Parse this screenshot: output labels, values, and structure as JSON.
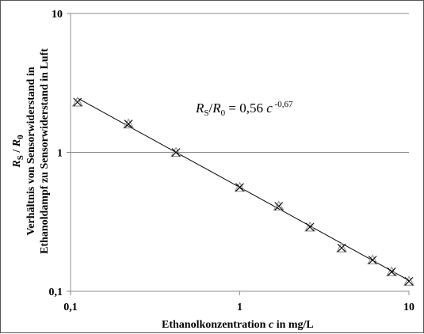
{
  "chart_data": {
    "type": "scatter",
    "x_scale": "log",
    "y_scale": "log",
    "xlim": [
      0.1,
      10
    ],
    "ylim": [
      0.1,
      10
    ],
    "x_ticks": [
      "0,1",
      "1",
      "10"
    ],
    "y_ticks": [
      "0,1",
      "1",
      "10"
    ],
    "grid": "horizontal major",
    "xlabel": {
      "prefix": "Ethanolkonzentration ",
      "var": "c",
      "suffix": " in mg/L"
    },
    "ylabel": {
      "line1": {
        "a": "R",
        "a_sub": "S",
        "sep": " / ",
        "b": "R",
        "b_sub": "0"
      },
      "line2": "Verhältnis von Sensorwiderstand in",
      "line3": "Ethanoldampf zu Sensorwiderstand in Luft"
    },
    "equation": {
      "a": "R",
      "a_sub": "S",
      "sep": "/",
      "b": "R",
      "b_sub": "0",
      "rhs": " = 0,56 ",
      "var": "c",
      "exp": " -0,67"
    },
    "fit": {
      "coefficient": 0.56,
      "exponent": -0.67,
      "x_range": [
        0.11,
        10
      ]
    },
    "series": [
      {
        "marker": "x",
        "x": [
          0.11,
          0.22,
          0.42,
          1.0,
          1.7,
          2.6,
          4.0,
          6.1,
          7.9,
          10.0
        ],
        "y": [
          2.3,
          1.6,
          1.0,
          0.56,
          0.41,
          0.29,
          0.205,
          0.168,
          0.138,
          0.118
        ]
      }
    ]
  }
}
